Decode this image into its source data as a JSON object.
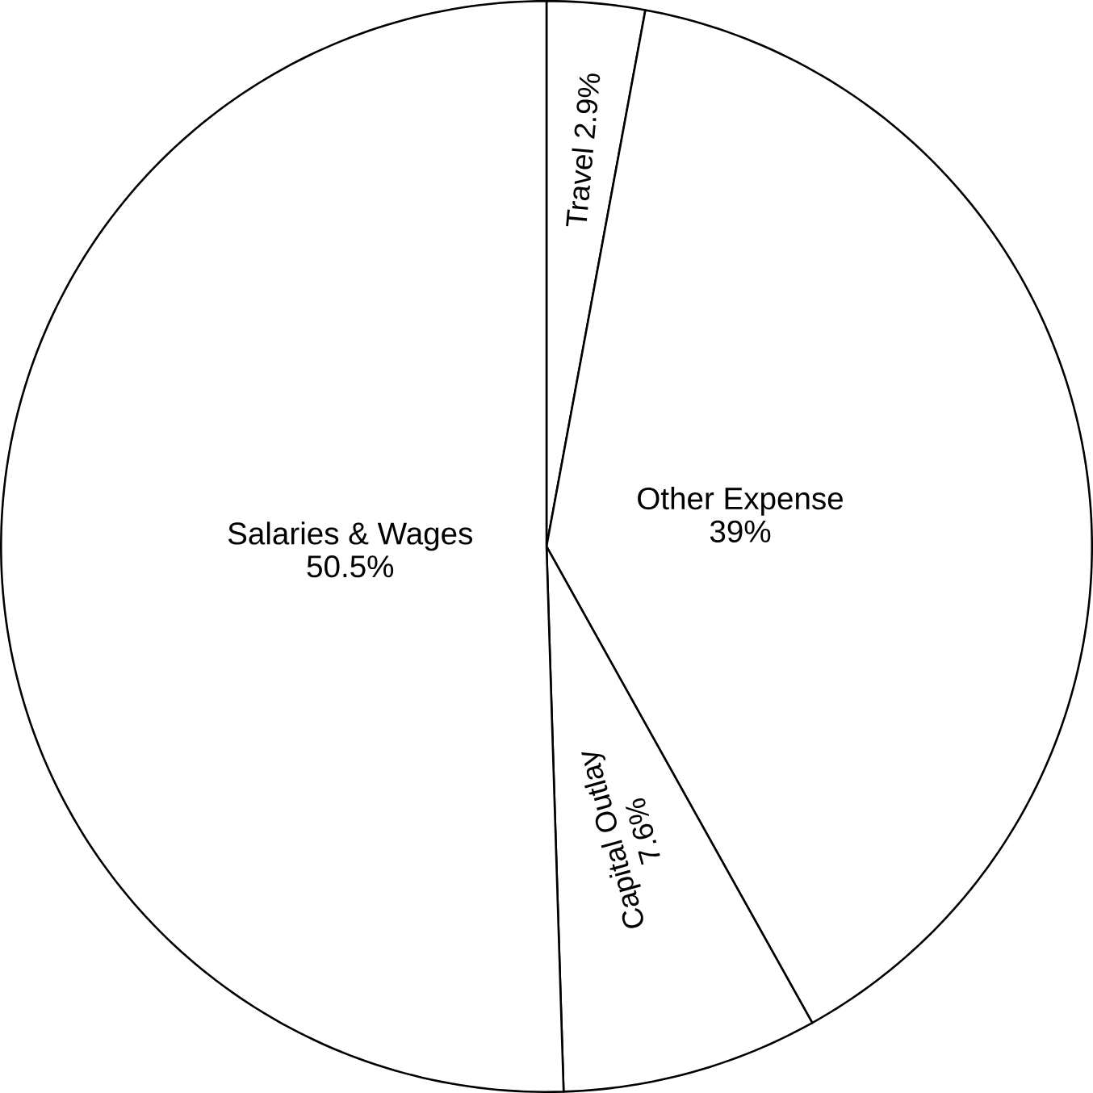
{
  "chart_data": {
    "type": "pie",
    "categories": [
      "Travel",
      "Other Expense",
      "Capital Outlay",
      "Salaries & Wages"
    ],
    "values": [
      2.9,
      39,
      7.6,
      50.5
    ],
    "value_labels": [
      "2.9%",
      "39%",
      "7.6%",
      "50.5%"
    ],
    "colors": [
      "#ffffff",
      "#ffffff",
      "#ffffff",
      "#ffffff"
    ]
  }
}
